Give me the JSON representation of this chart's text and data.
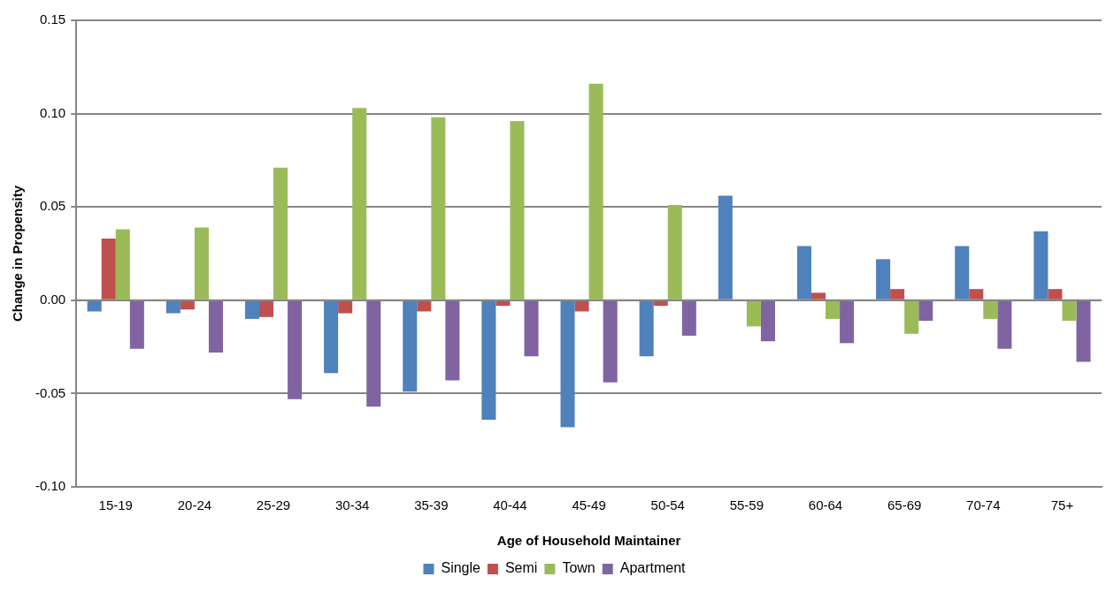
{
  "chart_data": {
    "type": "bar",
    "xlabel": "Age of Household Maintainer",
    "ylabel": "Change in Propensity",
    "categories": [
      "15-19",
      "20-24",
      "25-29",
      "30-34",
      "35-39",
      "40-44",
      "45-49",
      "50-54",
      "55-59",
      "60-64",
      "65-69",
      "70-74",
      "75+"
    ],
    "series": [
      {
        "name": "Single",
        "color": "#4f81bd",
        "values": [
          -0.006,
          -0.007,
          -0.01,
          -0.039,
          -0.049,
          -0.064,
          -0.068,
          -0.03,
          0.056,
          0.029,
          0.022,
          0.029,
          0.037
        ]
      },
      {
        "name": "Semi",
        "color": "#c0504d",
        "values": [
          0.033,
          -0.005,
          -0.009,
          -0.007,
          -0.006,
          -0.003,
          -0.006,
          -0.003,
          0,
          0.004,
          0.006,
          0.006,
          0.006
        ]
      },
      {
        "name": "Town",
        "color": "#9bbb59",
        "values": [
          0.038,
          0.039,
          0.071,
          0.103,
          0.098,
          0.096,
          0.116,
          0.051,
          -0.014,
          -0.01,
          -0.018,
          -0.01,
          -0.011
        ]
      },
      {
        "name": "Apartment",
        "color": "#8064a2",
        "values": [
          -0.026,
          -0.028,
          -0.053,
          -0.057,
          -0.043,
          -0.03,
          -0.044,
          -0.019,
          -0.022,
          -0.023,
          -0.011,
          -0.026,
          -0.033
        ]
      }
    ],
    "ylim": [
      -0.1,
      0.15
    ],
    "yticks": [
      {
        "value": -0.1,
        "label": "-0.10"
      },
      {
        "value": -0.05,
        "label": "-0.05"
      },
      {
        "value": 0,
        "label": "0.00"
      },
      {
        "value": 0.05,
        "label": "0.05"
      },
      {
        "value": 0.1,
        "label": "0.10"
      },
      {
        "value": 0.15,
        "label": "0.15"
      }
    ],
    "grid": "y",
    "legend": "bottom"
  }
}
